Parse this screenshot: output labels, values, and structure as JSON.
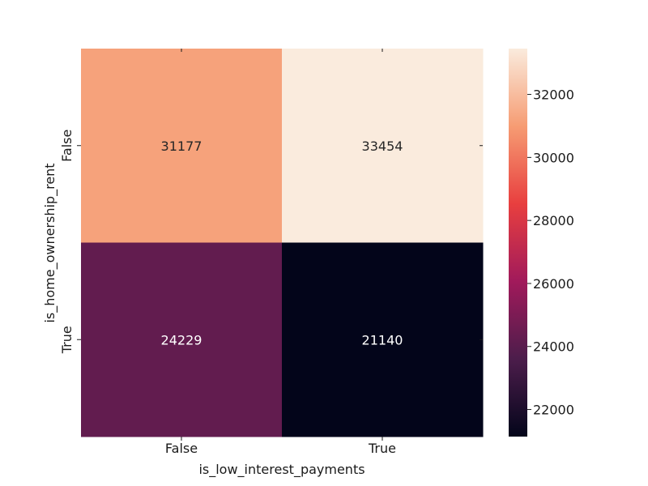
{
  "chart_data": {
    "type": "heatmap",
    "xlabel": "is_low_interest_payments",
    "ylabel": "is_home_ownership_rent",
    "x_categories": [
      "False",
      "True"
    ],
    "y_categories": [
      "False",
      "True"
    ],
    "values": [
      [
        31177,
        33454
      ],
      [
        24229,
        21140
      ]
    ],
    "colorbar": {
      "min": 21140,
      "max": 33454,
      "ticks": [
        22000,
        24000,
        26000,
        28000,
        30000,
        32000
      ],
      "colormap": "rocket",
      "colors": [
        "#03051a",
        "#4c1d4b",
        "#a11a5b",
        "#e83f3f",
        "#f69c73",
        "#faebdd"
      ]
    },
    "grid": false
  }
}
